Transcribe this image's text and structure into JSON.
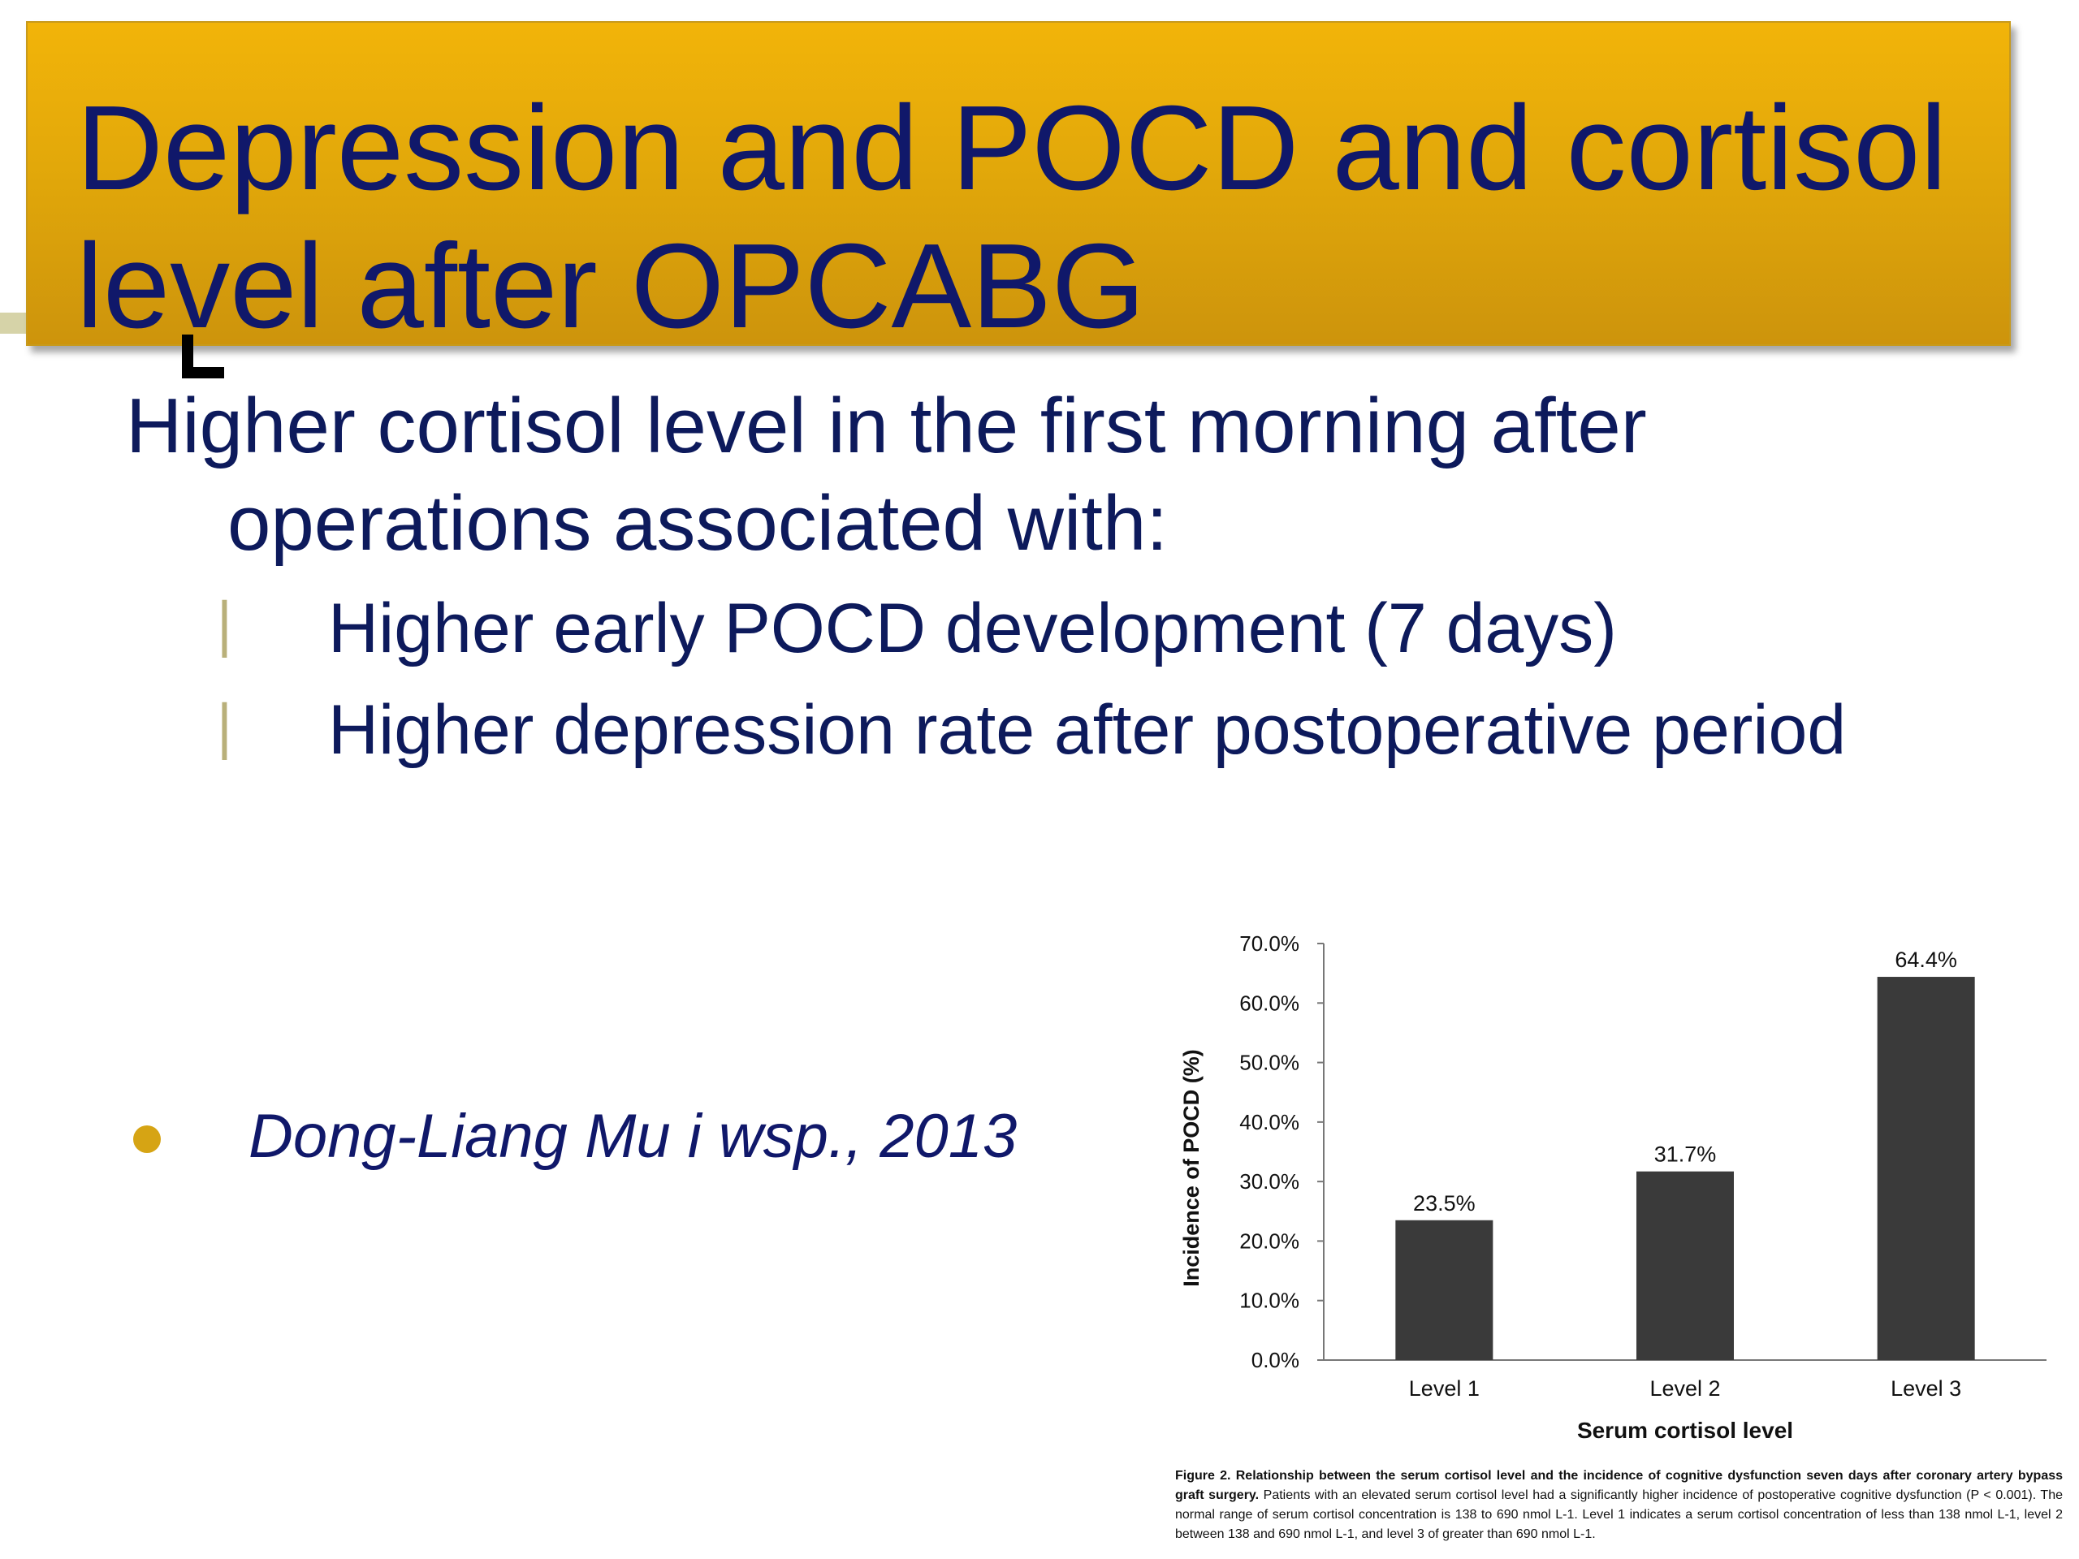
{
  "slide": {
    "title_line1": "Depression and POCD and cortisol",
    "title_line2": "level after OPCABG",
    "main_line1": "Higher cortisol level in the first morning after",
    "main_line2": "operations associated with:",
    "sub_items": [
      "Higher early POCD development (7 days)",
      "Higher depression rate after postoperative period"
    ],
    "citation": "Dong-Liang Mu i wsp., 2013"
  },
  "colors": {
    "banner": "#e2a80a",
    "title_text": "#10186a",
    "bar": "#3a3a3a",
    "bullet": "#d6a414"
  },
  "chart_data": {
    "type": "bar",
    "categories": [
      "Level 1",
      "Level 2",
      "Level 3"
    ],
    "values": [
      23.5,
      31.7,
      64.4
    ],
    "value_labels": [
      "23.5%",
      "31.7%",
      "64.4%"
    ],
    "xlabel": "Serum cortisol level",
    "ylabel": "Incidence of POCD (%)",
    "ylim": [
      0,
      70
    ],
    "yticks": [
      0,
      10,
      20,
      30,
      40,
      50,
      60,
      70
    ],
    "ytick_labels": [
      "0.0%",
      "10.0%",
      "20.0%",
      "30.0%",
      "40.0%",
      "50.0%",
      "60.0%",
      "70.0%"
    ],
    "grid": false
  },
  "caption": {
    "label": "Figure 2.",
    "bold_text": "Relationship between the serum cortisol level and the incidence of cognitive dysfunction seven days after coronary artery bypass graft surgery.",
    "text": "Patients with an elevated serum cortisol level had a significantly higher incidence of postoperative cognitive dysfunction (P < 0.001). The normal range of serum cortisol concentration is 138 to 690 nmol L-1. Level 1 indicates a serum cortisol concentration of less than 138 nmol L-1, level 2 between 138 and 690 nmol L-1, and level 3 of greater than 690 nmol L-1."
  }
}
